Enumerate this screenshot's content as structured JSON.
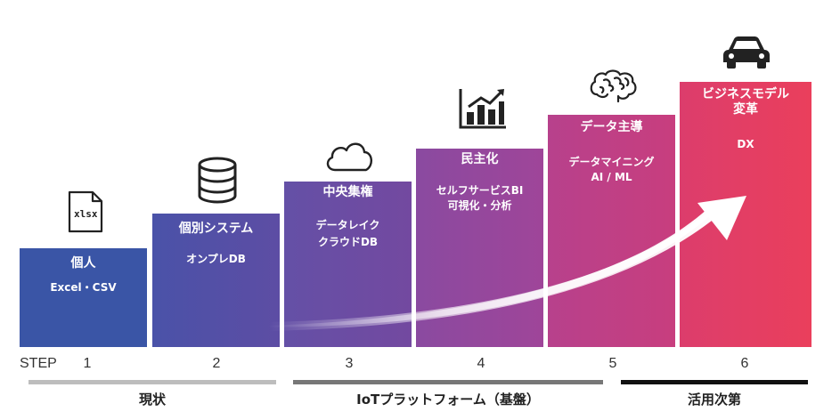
{
  "steps": [
    {
      "num": "1",
      "title": "個人",
      "sub1": "Excel・CSV",
      "sub2": "",
      "color": "#3a55a6",
      "icon": "xlsx-file-icon",
      "icon_text": "xlsx"
    },
    {
      "num": "2",
      "title": "個別システム",
      "sub1": "オンプレDB",
      "sub2": "",
      "color": "#5a4ea6",
      "icon": "database-icon"
    },
    {
      "num": "3",
      "title": "中央集権",
      "sub1": "データレイク",
      "sub2": "クラウドDB",
      "color": "#6e4aa2",
      "icon": "cloud-icon"
    },
    {
      "num": "4",
      "title": "民主化",
      "sub1": "セルフサービスBI",
      "sub2": "可視化・分析",
      "color": "#94469c",
      "icon": "bar-chart-icon"
    },
    {
      "num": "5",
      "title": "データ主導",
      "sub1": "データマイニング",
      "sub2": "AI / ML",
      "color": "#c03f86",
      "icon": "brain-icon"
    },
    {
      "num": "6",
      "title": "ビジネスモデル",
      "title2": "変革",
      "sub1": "DX",
      "sub2": "",
      "color": "#e33e63",
      "icon": "car-icon"
    }
  ],
  "step_label": "STEP",
  "phases": [
    {
      "label": "現状",
      "color": "#bdbdbd"
    },
    {
      "label": "IoTプラットフォーム（基盤）",
      "color": "#777777"
    },
    {
      "label": "活用次第",
      "color": "#111111"
    }
  ]
}
